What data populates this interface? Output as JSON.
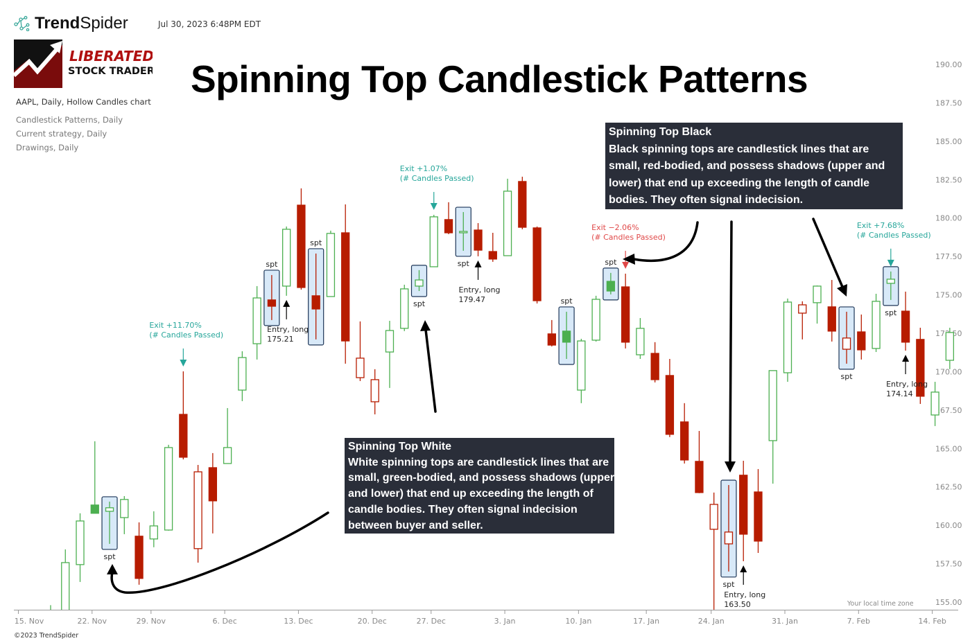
{
  "header": {
    "brand": {
      "name_bold": "Trend",
      "name_regular": "Spider"
    },
    "timestamp": "Jul 30, 2023 6:48PM EDT",
    "logo": {
      "line1": "LIBERATED",
      "line2": "STOCK TRADER"
    },
    "title": "Spinning Top Candlestick Patterns"
  },
  "legend": {
    "main": "AAPL, Daily, Hollow Candles chart",
    "items": [
      "Candlestick Patterns, Daily",
      "Current strategy, Daily",
      "Drawings, Daily"
    ]
  },
  "callouts": {
    "black": {
      "title": "Spinning Top Black",
      "lines": [
        "Black spinning tops are candlestick lines that are",
        "small, red-bodied, and possess shadows (upper and",
        "lower) that end up exceeding the length of candle",
        "bodies. They often signal indecision."
      ]
    },
    "white": {
      "title": "Spinning Top White",
      "lines": [
        "White spinning tops are candlestick lines that are",
        "small, green-bodied, and possess shadows (upper",
        "and lower) that end up exceeding the length of",
        "candle bodies. They often signal indecision",
        "between buyer and seller."
      ]
    }
  },
  "footer": {
    "copyright": "©2023 TrendSpider",
    "timezone_note": "Your local time zone"
  },
  "colors": {
    "up": "#4caf50",
    "down": "#b71c00",
    "exit_gain": "#26a69a",
    "exit_loss": "#e04848",
    "spt_fill": "#d8e9f8",
    "spt_border": "#1d3557",
    "callout_bg": "#2a2e39",
    "axis_text": "#888888"
  },
  "chart_data": {
    "type": "candlestick",
    "style": "hollow candles",
    "symbol": "AAPL",
    "interval": "Daily",
    "ylim": [
      154.6,
      191.5
    ],
    "y_ticks": [
      "190.00",
      "187.50",
      "185.00",
      "182.50",
      "180.00",
      "177.50",
      "175.00",
      "172.50",
      "170.00",
      "167.50",
      "165.00",
      "162.50",
      "160.00",
      "157.50",
      "155.00"
    ],
    "x_ticks": [
      {
        "label": "15. Nov",
        "date": "15 Nov"
      },
      {
        "label": "22. Nov",
        "date": "22 Nov"
      },
      {
        "label": "29. Nov",
        "date": "29 Nov"
      },
      {
        "label": "6. Dec",
        "date": "6 Dec"
      },
      {
        "label": "13. Dec",
        "date": "13 Dec"
      },
      {
        "label": "20. Dec",
        "date": "20 Dec"
      },
      {
        "label": "27. Dec",
        "date": "27 Dec"
      },
      {
        "label": "3. Jan",
        "date": "3 Jan"
      },
      {
        "label": "10. Jan",
        "date": "10 Jan"
      },
      {
        "label": "17. Jan",
        "date": "17 Jan"
      },
      {
        "label": "24. Jan",
        "date": "24 Jan"
      },
      {
        "label": "31. Jan",
        "date": "31 Jan"
      },
      {
        "label": "7. Feb",
        "date": "7 Feb"
      },
      {
        "label": "14. Feb",
        "date": "14 Feb"
      }
    ],
    "candle_fields": [
      "date",
      "open",
      "high",
      "low",
      "close",
      "color"
    ],
    "candles": [
      [
        "17 Nov",
        152.0,
        154.8,
        151.5,
        153.0,
        "g"
      ],
      [
        "18 Nov",
        153.7,
        158.43,
        153.3,
        157.57,
        "g"
      ],
      [
        "19 Nov",
        157.44,
        160.78,
        156.31,
        160.28,
        "g"
      ],
      [
        "22 Nov",
        161.32,
        165.47,
        160.78,
        160.78,
        "g"
      ],
      [
        "23 Nov",
        160.91,
        161.54,
        158.79,
        161.14,
        "g"
      ],
      [
        "24 Nov",
        160.5,
        161.9,
        159.42,
        161.68,
        "g"
      ],
      [
        "26 Nov",
        159.29,
        160.19,
        156.13,
        156.54,
        "r"
      ],
      [
        "29 Nov",
        159.11,
        160.91,
        158.57,
        159.96,
        "g"
      ],
      [
        "30 Nov",
        159.69,
        165.24,
        159.65,
        165.06,
        "g"
      ],
      [
        "1 Dec",
        167.22,
        170.02,
        164.29,
        164.43,
        "r"
      ],
      [
        "2 Dec",
        158.48,
        163.93,
        157.57,
        163.48,
        "r"
      ],
      [
        "3 Dec",
        163.75,
        164.7,
        159.47,
        161.59,
        "r"
      ],
      [
        "6 Dec",
        164.02,
        167.63,
        164.02,
        165.06,
        "g"
      ],
      [
        "7 Dec",
        168.8,
        171.33,
        168.08,
        170.92,
        "g"
      ],
      [
        "8 Dec",
        171.82,
        175.57,
        170.79,
        174.8,
        "g"
      ],
      [
        "9 Dec",
        174.67,
        176.29,
        173.36,
        174.26,
        "r"
      ],
      [
        "10 Dec",
        175.57,
        179.45,
        174.94,
        179.27,
        "g"
      ],
      [
        "13 Dec",
        180.84,
        181.93,
        175.34,
        175.48,
        "r"
      ],
      [
        "14 Dec",
        174.94,
        177.69,
        172.1,
        174.08,
        "r"
      ],
      [
        "15 Dec",
        174.89,
        179.18,
        174.89,
        179.0,
        "g"
      ],
      [
        "16 Dec",
        179.04,
        180.89,
        170.52,
        172.0,
        "r"
      ],
      [
        "17 Dec",
        169.61,
        173.27,
        169.39,
        170.88,
        "r"
      ],
      [
        "20 Dec",
        168.04,
        170.16,
        167.22,
        169.48,
        "r"
      ],
      [
        "21 Dec",
        171.28,
        173.31,
        168.94,
        172.68,
        "g"
      ],
      [
        "22 Dec",
        172.82,
        175.66,
        172.64,
        175.39,
        "g"
      ],
      [
        "23 Dec",
        175.57,
        176.61,
        175.25,
        175.97,
        "g"
      ],
      [
        "27 Dec",
        176.83,
        180.21,
        176.83,
        180.08,
        "g"
      ],
      [
        "28 Dec",
        179.9,
        181.03,
        178.95,
        179.04,
        "r"
      ],
      [
        "29 Dec",
        179.04,
        180.39,
        177.87,
        179.13,
        "g"
      ],
      [
        "30 Dec",
        179.22,
        179.67,
        177.51,
        177.91,
        "r"
      ],
      [
        "31 Dec",
        177.82,
        179.04,
        177.15,
        177.33,
        "r"
      ],
      [
        "3 Jan",
        177.55,
        182.56,
        177.55,
        181.75,
        "g"
      ],
      [
        "4 Jan",
        182.38,
        182.69,
        179.27,
        179.4,
        "r"
      ],
      [
        "5 Jan",
        179.36,
        179.45,
        174.44,
        174.62,
        "r"
      ],
      [
        "6 Jan",
        172.46,
        173.36,
        171.64,
        171.73,
        "r"
      ],
      [
        "7 Jan",
        172.64,
        173.9,
        170.83,
        171.92,
        "g"
      ],
      [
        "10 Jan",
        168.8,
        172.14,
        167.95,
        172.0,
        "g"
      ],
      [
        "11 Jan",
        172.05,
        174.94,
        171.96,
        174.71,
        "g"
      ],
      [
        "12 Jan",
        175.88,
        176.43,
        175.03,
        175.25,
        "g"
      ],
      [
        "13 Jan",
        175.52,
        176.38,
        171.51,
        171.92,
        "r"
      ],
      [
        "14 Jan",
        171.1,
        173.49,
        170.83,
        172.82,
        "g"
      ],
      [
        "18 Jan",
        171.19,
        171.92,
        169.3,
        169.48,
        "r"
      ],
      [
        "19 Jan",
        169.75,
        170.83,
        165.74,
        165.92,
        "r"
      ],
      [
        "20 Jan",
        166.73,
        167.95,
        164.02,
        164.25,
        "r"
      ],
      [
        "21 Jan",
        164.16,
        166.14,
        162.09,
        162.13,
        "r"
      ],
      [
        "24 Jan",
        159.74,
        162.13,
        154.51,
        161.36,
        "r"
      ],
      [
        "25 Jan",
        158.79,
        162.62,
        156.99,
        159.56,
        "r"
      ],
      [
        "26 Jan",
        163.26,
        164.2,
        157.66,
        159.42,
        "r"
      ],
      [
        "27 Jan",
        162.17,
        163.66,
        158.2,
        158.97,
        "r"
      ],
      [
        "28 Jan",
        165.51,
        170.07,
        162.71,
        170.07,
        "g"
      ],
      [
        "31 Jan",
        169.93,
        174.76,
        169.34,
        174.53,
        "g"
      ],
      [
        "1 Feb",
        173.81,
        174.58,
        172.1,
        174.35,
        "r"
      ],
      [
        "2 Feb",
        174.49,
        175.61,
        173.13,
        175.57,
        "g"
      ],
      [
        "3 Feb",
        174.22,
        175.97,
        171.96,
        172.64,
        "r"
      ],
      [
        "4 Feb",
        171.46,
        173.9,
        170.52,
        172.19,
        "r"
      ],
      [
        "7 Feb",
        172.59,
        173.72,
        170.79,
        171.42,
        "r"
      ],
      [
        "8 Feb",
        171.51,
        175.07,
        171.28,
        174.58,
        "g"
      ],
      [
        "9 Feb",
        175.75,
        176.52,
        174.67,
        176.02,
        "g"
      ],
      [
        "10 Feb",
        173.94,
        175.21,
        171.37,
        171.92,
        "r"
      ],
      [
        "11 Feb",
        172.1,
        172.86,
        167.9,
        168.4,
        "r"
      ],
      [
        "14 Feb",
        167.18,
        169.34,
        166.46,
        168.67,
        "g"
      ],
      [
        "15 Feb",
        170.74,
        172.86,
        170.16,
        172.55,
        "g"
      ]
    ],
    "spt_patterns": [
      {
        "date": "23 Nov",
        "label": "spt",
        "label_side": "below"
      },
      {
        "date": "9 Dec",
        "label": "spt",
        "label_side": "above"
      },
      {
        "date": "14 Dec",
        "label": "spt",
        "label_side": "above"
      },
      {
        "date": "23 Dec",
        "label": "spt",
        "label_side": "below"
      },
      {
        "date": "29 Dec",
        "label": "spt",
        "label_side": "below"
      },
      {
        "date": "7 Jan",
        "label": "spt",
        "label_side": "above"
      },
      {
        "date": "12 Jan",
        "label": "spt",
        "label_side": "above"
      },
      {
        "date": "25 Jan",
        "label": "spt",
        "label_side": "below"
      },
      {
        "date": "4 Feb",
        "label": "spt",
        "label_side": "below"
      },
      {
        "date": "9 Feb",
        "label": "spt",
        "label_side": "below"
      }
    ],
    "signals": [
      {
        "type": "exit",
        "date": "1 Dec",
        "lines": [
          "Exit +11.70%",
          "(# Candles Passed)"
        ],
        "outcome": "gain"
      },
      {
        "type": "entry",
        "date": "10 Dec",
        "lines": [
          "Entry, long",
          "175.21"
        ]
      },
      {
        "type": "exit",
        "date": "27 Dec",
        "lines": [
          "Exit +1.07%",
          "(# Candles Passed)"
        ],
        "outcome": "gain"
      },
      {
        "type": "entry",
        "date": "30 Dec",
        "lines": [
          "Entry, long",
          "179.47"
        ]
      },
      {
        "type": "exit",
        "date": "13 Jan",
        "lines": [
          "Exit −2.06%",
          "(# Candles Passed)"
        ],
        "outcome": "loss"
      },
      {
        "type": "entry",
        "date": "26 Jan",
        "lines": [
          "Entry, long",
          "163.50"
        ]
      },
      {
        "type": "exit",
        "date": "9 Feb",
        "lines": [
          "Exit +7.68%",
          "(# Candles Passed)"
        ],
        "outcome": "gain"
      },
      {
        "type": "entry",
        "date": "10 Feb",
        "lines": [
          "Entry, long",
          "174.14"
        ]
      }
    ]
  }
}
